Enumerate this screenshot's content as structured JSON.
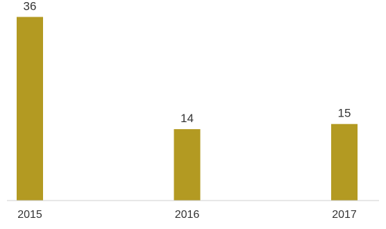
{
  "chart_data": {
    "type": "bar",
    "categories": [
      "2015",
      "2016",
      "2017"
    ],
    "values": [
      36,
      14,
      15
    ],
    "ylim": [
      0,
      38.5
    ],
    "grid": false,
    "legend": "none",
    "colors": {
      "bar": "#b39a22",
      "axis": "#cfcfcf",
      "text": "#333333"
    }
  }
}
